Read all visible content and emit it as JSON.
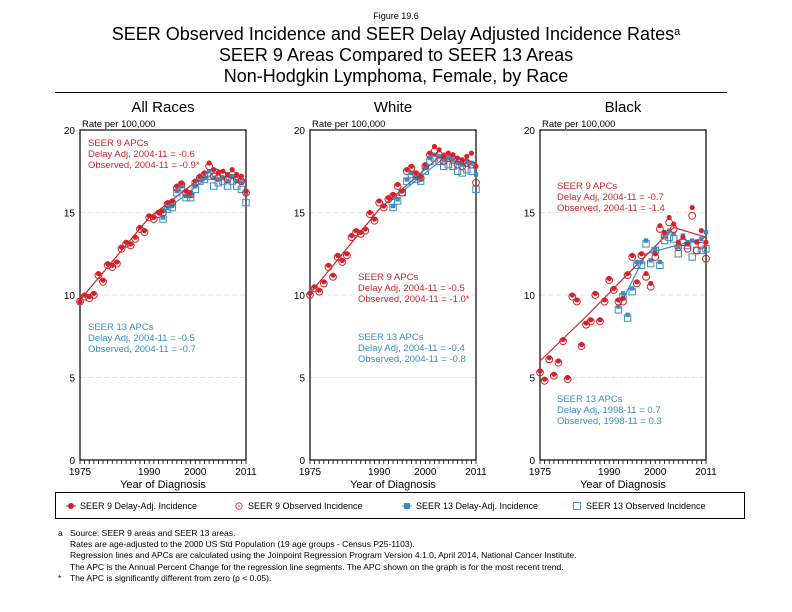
{
  "figure_number": "Figure 19.6",
  "title_lines": [
    "SEER Observed Incidence and SEER Delay Adjusted Incidence Rates",
    "SEER 9 Areas Compared to SEER 13 Areas",
    "Non-Hodgkin Lymphoma, Female, by Race"
  ],
  "title_superscript": "a",
  "colors": {
    "seer9": "#d2232a",
    "seer13": "#3a8dc0",
    "grid": "#dddddd"
  },
  "legend": [
    {
      "label": "SEER 9 Delay-Adj. Incidence",
      "marker": "filled-circle",
      "color": "#d2232a"
    },
    {
      "label": "SEER 9 Observed Incidence",
      "marker": "open-circle",
      "color": "#d2232a"
    },
    {
      "label": "SEER 13 Delay-Adj. Incidence",
      "marker": "filled-square",
      "color": "#3a8dc0"
    },
    {
      "label": "SEER 13 Observed Incidence",
      "marker": "open-square",
      "color": "#3a8dc0"
    }
  ],
  "footnotes": [
    {
      "mark": "a",
      "text": "Source: SEER 9 areas and SEER 13 areas."
    },
    {
      "mark": "",
      "text": "Rates are age-adjusted to the 2000 US Std Population (19 age groups - Census P25-1103)."
    },
    {
      "mark": "",
      "text": "Regression lines and APCs are calculated using the Joinpoint Regression Program Version 4.1.0, April 2014, National Cancer Institute."
    },
    {
      "mark": "",
      "text": "The APC is the Annual Percent Change for the regression line segments. The APC shown on the graph is for the most recent trend."
    },
    {
      "mark": "*",
      "text": "The APC is significantly different from zero (p < 0.05)."
    }
  ],
  "chart_data": [
    {
      "type": "scatter",
      "title": "All Races",
      "ylabel": "Rate per 100,000",
      "xlabel": "Year of Diagnosis",
      "xlim": [
        1975,
        2011
      ],
      "ylim": [
        0,
        20
      ],
      "xticks": [
        1975,
        1990,
        2000,
        2011
      ],
      "yticks": [
        0,
        5,
        10,
        15,
        20
      ],
      "grid": true,
      "apc_seer9": {
        "heading": "SEER 9 APCs",
        "lines": [
          "Delay Adj, 2004-11 = -0.6",
          "Observed, 2004-11 = -0.9*"
        ]
      },
      "apc_seer13": {
        "heading": "SEER 13 APCs",
        "lines": [
          "Delay Adj, 2004-11 = -0.5",
          "Observed, 2004-11 = -0.7"
        ]
      },
      "x": [
        1975,
        1976,
        1977,
        1978,
        1979,
        1980,
        1981,
        1982,
        1983,
        1984,
        1985,
        1986,
        1987,
        1988,
        1989,
        1990,
        1991,
        1992,
        1993,
        1994,
        1995,
        1996,
        1997,
        1998,
        1999,
        2000,
        2001,
        2002,
        2003,
        2004,
        2005,
        2006,
        2007,
        2008,
        2009,
        2010,
        2011
      ],
      "series": [
        {
          "name": "SEER 9 Delay-Adj. Incidence",
          "values": [
            9.6,
            10.0,
            9.9,
            10.1,
            11.3,
            10.9,
            11.9,
            11.8,
            12.0,
            12.9,
            13.2,
            13.1,
            13.5,
            14.1,
            13.9,
            14.8,
            14.7,
            15.0,
            15.1,
            15.6,
            15.7,
            16.6,
            16.8,
            16.3,
            16.2,
            16.9,
            17.2,
            17.4,
            18.0,
            17.6,
            17.4,
            17.5,
            17.3,
            17.6,
            17.3,
            17.2,
            16.3
          ]
        },
        {
          "name": "SEER 9 Observed Incidence",
          "values": [
            9.6,
            9.9,
            9.8,
            10.0,
            11.2,
            10.8,
            11.8,
            11.7,
            11.9,
            12.8,
            13.1,
            13.0,
            13.4,
            14.0,
            13.8,
            14.7,
            14.6,
            14.9,
            15.0,
            15.5,
            15.6,
            16.5,
            16.7,
            16.2,
            16.1,
            16.8,
            17.1,
            17.3,
            17.8,
            17.2,
            17.1,
            17.3,
            17.0,
            17.3,
            17.0,
            16.9,
            16.2
          ]
        },
        {
          "name": "SEER 13 Delay-Adj. Incidence",
          "values": [
            null,
            null,
            null,
            null,
            null,
            null,
            null,
            null,
            null,
            null,
            null,
            null,
            null,
            null,
            null,
            null,
            null,
            null,
            14.7,
            15.3,
            15.4,
            16.3,
            16.6,
            16.0,
            16.0,
            16.6,
            17.0,
            17.1,
            17.5,
            17.1,
            17.0,
            17.1,
            16.9,
            17.2,
            16.9,
            16.8,
            16.2
          ]
        },
        {
          "name": "SEER 13 Observed Incidence",
          "values": [
            null,
            null,
            null,
            null,
            null,
            null,
            null,
            null,
            null,
            null,
            null,
            null,
            null,
            null,
            null,
            null,
            null,
            null,
            14.6,
            15.2,
            15.3,
            16.2,
            16.5,
            15.9,
            15.9,
            16.4,
            16.9,
            17.0,
            17.2,
            16.6,
            16.8,
            16.9,
            16.6,
            16.9,
            16.6,
            16.4,
            15.6
          ]
        }
      ],
      "fit_seer9": [
        [
          1975,
          9.7
        ],
        [
          1990,
          14.7
        ],
        [
          2004,
          17.7
        ],
        [
          2011,
          16.9
        ]
      ],
      "fit_seer13": [
        [
          1992,
          14.8
        ],
        [
          2004,
          17.4
        ],
        [
          2011,
          16.8
        ]
      ]
    },
    {
      "type": "scatter",
      "title": "White",
      "ylabel": "Rate per 100,000",
      "xlabel": "Year of Diagnosis",
      "xlim": [
        1975,
        2011
      ],
      "ylim": [
        0,
        20
      ],
      "xticks": [
        1975,
        1990,
        2000,
        2011
      ],
      "yticks": [
        0,
        5,
        10,
        15,
        20
      ],
      "grid": true,
      "apc_seer9": {
        "heading": "SEER 9 APCs",
        "lines": [
          "Delay Adj, 2004-11 = -0.5",
          "Observed, 2004-11 = -1.0*"
        ]
      },
      "apc_seer13": {
        "heading": "SEER 13 APCs",
        "lines": [
          "Delay Adj, 2004-11 = -0.4",
          "Observed, 2004-11 = -0.8"
        ]
      },
      "x": [
        1975,
        1976,
        1977,
        1978,
        1979,
        1980,
        1981,
        1982,
        1983,
        1984,
        1985,
        1986,
        1987,
        1988,
        1989,
        1990,
        1991,
        1992,
        1993,
        1994,
        1995,
        1996,
        1997,
        1998,
        1999,
        2000,
        2001,
        2002,
        2003,
        2004,
        2005,
        2006,
        2007,
        2008,
        2009,
        2010,
        2011
      ],
      "series": [
        {
          "name": "SEER 9 Delay-Adj. Incidence",
          "values": [
            10.1,
            10.5,
            10.3,
            10.8,
            11.8,
            11.2,
            12.4,
            12.1,
            12.5,
            13.6,
            13.9,
            13.8,
            14.0,
            15.0,
            14.6,
            15.7,
            15.4,
            15.9,
            16.1,
            16.7,
            16.3,
            17.6,
            17.8,
            17.4,
            17.2,
            17.9,
            18.6,
            19.0,
            18.8,
            18.4,
            18.6,
            18.5,
            18.3,
            18.2,
            18.4,
            18.6,
            17.8
          ]
        },
        {
          "name": "SEER 9 Observed Incidence",
          "values": [
            10.0,
            10.4,
            10.2,
            10.7,
            11.7,
            11.1,
            12.3,
            12.0,
            12.4,
            13.5,
            13.8,
            13.7,
            13.9,
            14.9,
            14.5,
            15.6,
            15.3,
            15.8,
            16.0,
            16.6,
            16.2,
            17.5,
            17.7,
            17.3,
            17.1,
            17.8,
            18.5,
            18.7,
            18.5,
            18.1,
            18.3,
            18.2,
            17.9,
            17.8,
            18.0,
            17.9,
            16.8
          ]
        },
        {
          "name": "SEER 13 Delay-Adj. Incidence",
          "values": [
            null,
            null,
            null,
            null,
            null,
            null,
            null,
            null,
            null,
            null,
            null,
            null,
            null,
            null,
            null,
            null,
            null,
            null,
            15.4,
            15.8,
            16.3,
            17.0,
            17.4,
            17.1,
            17.0,
            17.7,
            18.3,
            18.5,
            18.4,
            18.2,
            18.3,
            18.2,
            18.0,
            17.9,
            18.1,
            18.0,
            17.3
          ]
        },
        {
          "name": "SEER 13 Observed Incidence",
          "values": [
            null,
            null,
            null,
            null,
            null,
            null,
            null,
            null,
            null,
            null,
            null,
            null,
            null,
            null,
            null,
            null,
            null,
            null,
            15.3,
            15.7,
            16.2,
            16.9,
            17.3,
            17.0,
            16.9,
            17.5,
            18.1,
            18.3,
            18.1,
            17.8,
            17.9,
            17.8,
            17.5,
            17.4,
            17.6,
            17.5,
            16.4
          ]
        }
      ],
      "fit_seer9": [
        [
          1975,
          10.1
        ],
        [
          1990,
          15.2
        ],
        [
          2004,
          18.6
        ],
        [
          2011,
          18.0
        ]
      ],
      "fit_seer13": [
        [
          1992,
          15.6
        ],
        [
          2004,
          18.3
        ],
        [
          2011,
          17.8
        ]
      ]
    },
    {
      "type": "scatter",
      "title": "Black",
      "ylabel": "Rate per 100,000",
      "xlabel": "Year of Diagnosis",
      "xlim": [
        1975,
        2011
      ],
      "ylim": [
        0,
        20
      ],
      "xticks": [
        1975,
        1990,
        2000,
        2011
      ],
      "yticks": [
        0,
        5,
        10,
        15,
        20
      ],
      "grid": true,
      "apc_seer9": {
        "heading": "SEER 9 APCs",
        "lines": [
          "Delay Adj, 2004-11 = -0.7",
          "Observed, 2004-11 = -1.4"
        ]
      },
      "apc_seer13": {
        "heading": "SEER 13 APCs",
        "lines": [
          "Delay Adj, 1998-11 = 0.7",
          "Observed, 1998-11 = 0.3"
        ]
      },
      "x": [
        1975,
        1976,
        1977,
        1978,
        1979,
        1980,
        1981,
        1982,
        1983,
        1984,
        1985,
        1986,
        1987,
        1988,
        1989,
        1990,
        1991,
        1992,
        1993,
        1994,
        1995,
        1996,
        1997,
        1998,
        1999,
        2000,
        2001,
        2002,
        2003,
        2004,
        2005,
        2006,
        2007,
        2008,
        2009,
        2010,
        2011
      ],
      "series": [
        {
          "name": "SEER 9 Delay-Adj. Incidence",
          "values": [
            5.4,
            4.9,
            6.2,
            5.2,
            6.0,
            7.3,
            5.0,
            10.0,
            9.7,
            7.0,
            8.3,
            8.5,
            10.1,
            8.5,
            9.7,
            11.0,
            10.4,
            9.7,
            9.8,
            11.3,
            12.4,
            10.8,
            12.5,
            11.3,
            10.7,
            12.5,
            14.2,
            13.8,
            14.7,
            14.3,
            13.2,
            13.5,
            13.1,
            15.3,
            13.2,
            13.9,
            13.2
          ]
        },
        {
          "name": "SEER 9 Observed Incidence",
          "values": [
            5.3,
            4.8,
            6.1,
            5.1,
            5.9,
            7.2,
            4.9,
            9.9,
            9.6,
            6.9,
            8.2,
            8.4,
            10.0,
            8.4,
            9.6,
            10.9,
            10.3,
            9.6,
            9.6,
            11.2,
            12.3,
            10.7,
            12.4,
            11.1,
            10.5,
            12.3,
            14.0,
            13.6,
            14.4,
            14.0,
            12.9,
            13.2,
            12.8,
            14.8,
            12.7,
            13.0,
            12.2
          ]
        },
        {
          "name": "SEER 13 Delay-Adj. Incidence",
          "values": [
            null,
            null,
            null,
            null,
            null,
            null,
            null,
            null,
            null,
            null,
            null,
            null,
            null,
            null,
            null,
            null,
            null,
            9.3,
            10.1,
            8.8,
            10.4,
            12.0,
            12.0,
            13.3,
            12.1,
            12.8,
            12.0,
            13.6,
            13.9,
            13.7,
            12.9,
            13.6,
            13.2,
            13.3,
            13.2,
            13.4,
            13.8
          ]
        },
        {
          "name": "SEER 13 Observed Incidence",
          "values": [
            null,
            null,
            null,
            null,
            null,
            null,
            null,
            null,
            null,
            null,
            null,
            null,
            null,
            null,
            null,
            null,
            null,
            9.1,
            9.9,
            8.6,
            10.2,
            11.8,
            11.8,
            13.1,
            11.9,
            12.7,
            11.8,
            13.3,
            13.5,
            13.4,
            12.5,
            13.2,
            13.0,
            12.3,
            12.7,
            12.7,
            12.8
          ]
        }
      ],
      "fit_seer9": [
        [
          1975,
          6.0
        ],
        [
          1985,
          8.7
        ],
        [
          2004,
          14.1
        ],
        [
          2011,
          13.5
        ]
      ],
      "fit_seer13": [
        [
          1992,
          9.2
        ],
        [
          1998,
          12.5
        ],
        [
          2011,
          13.5
        ]
      ]
    }
  ]
}
